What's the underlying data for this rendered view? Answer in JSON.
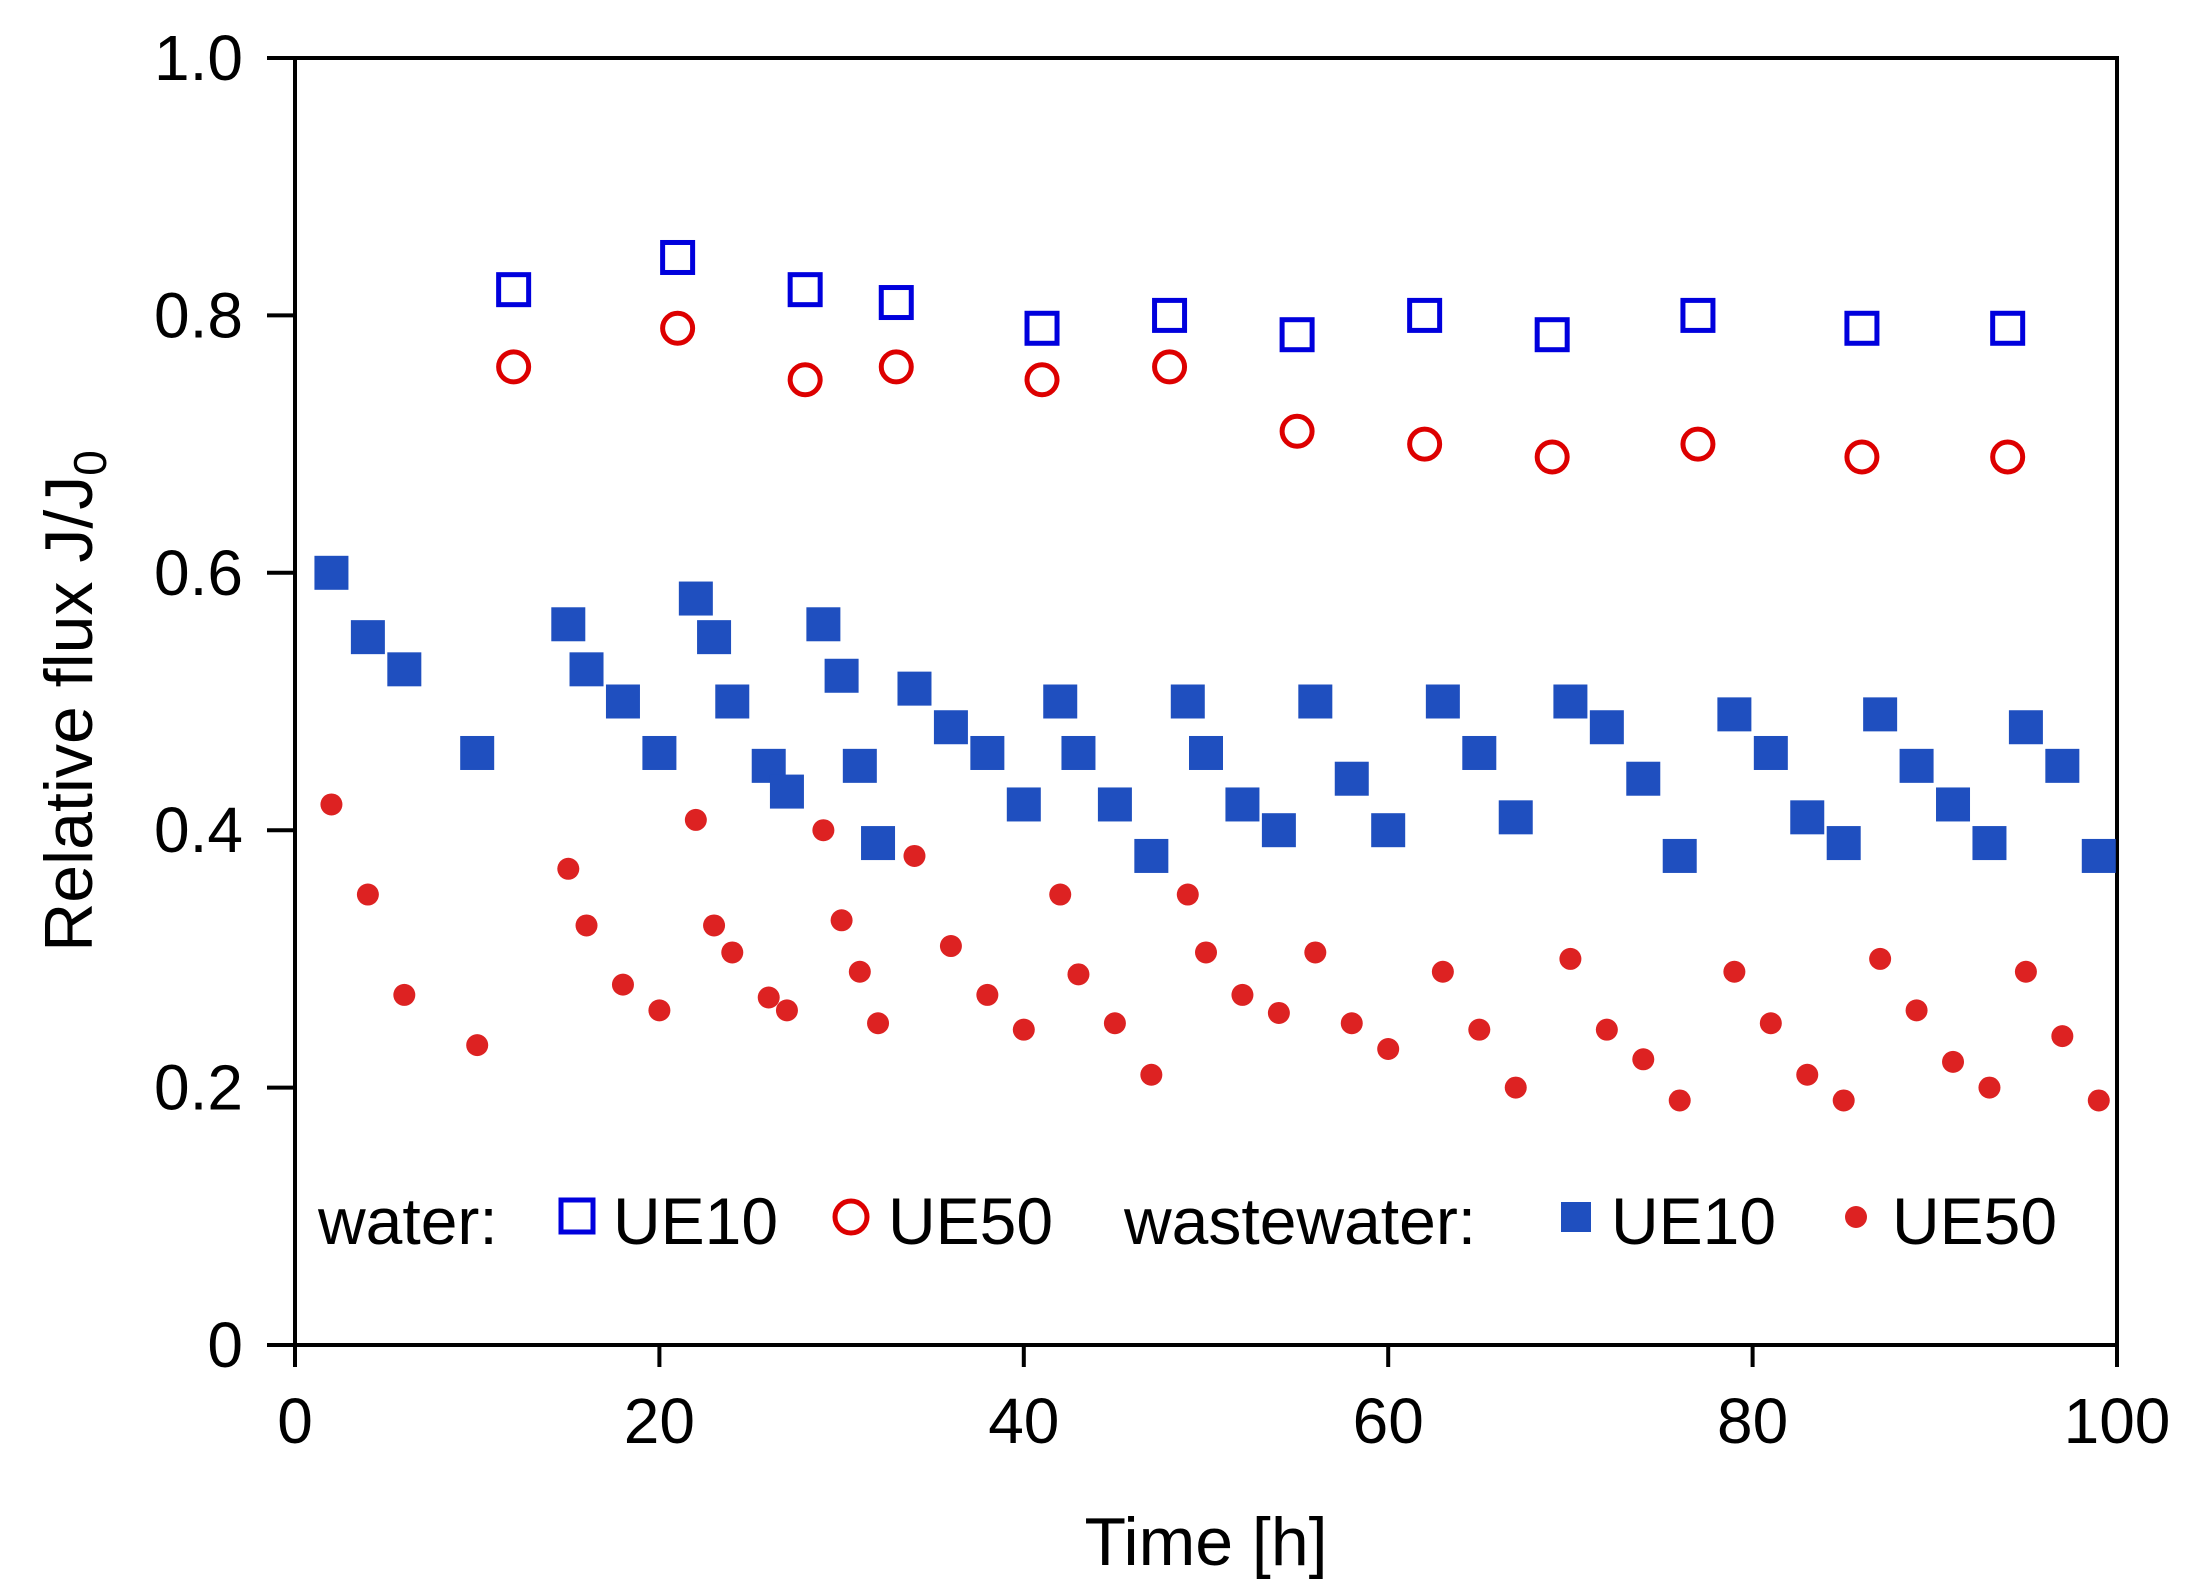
{
  "chart_data": {
    "type": "scatter",
    "title": "",
    "xlabel": "Time [h]",
    "ylabel_main": "Relative flux J/J",
    "ylabel_subscript": "0",
    "xlim": [
      0,
      100
    ],
    "ylim": [
      0,
      1.0
    ],
    "xticks": [
      0,
      20,
      40,
      60,
      80,
      100
    ],
    "xtick_labels": [
      "0",
      "20",
      "40",
      "60",
      "80",
      "100"
    ],
    "yticks": [
      0,
      0.2,
      0.4,
      0.6,
      0.8,
      1.0
    ],
    "ytick_labels": [
      "0",
      "0.2",
      "0.4",
      "0.6",
      "0.8",
      "1.0"
    ],
    "grid": false,
    "legend_position": "bottom",
    "legend": {
      "water_label": "water:",
      "wastewater_label": "wastewater:",
      "water_ue10": "UE10",
      "water_ue50": "UE50",
      "wastewater_ue10": "UE10",
      "wastewater_ue50": "UE50"
    },
    "series": [
      {
        "name": "water UE10",
        "marker": "square-open",
        "color": "#0000dd",
        "x": [
          12,
          21,
          28,
          33,
          41,
          48,
          55,
          62,
          69,
          77,
          86,
          94
        ],
        "y": [
          0.82,
          0.845,
          0.82,
          0.81,
          0.79,
          0.8,
          0.785,
          0.8,
          0.785,
          0.8,
          0.79,
          0.79
        ]
      },
      {
        "name": "water UE50",
        "marker": "circle-open",
        "color": "#dd0000",
        "x": [
          12,
          21,
          28,
          33,
          41,
          48,
          55,
          62,
          69,
          77,
          86,
          94
        ],
        "y": [
          0.76,
          0.79,
          0.75,
          0.76,
          0.75,
          0.76,
          0.71,
          0.7,
          0.69,
          0.7,
          0.69,
          0.69
        ]
      },
      {
        "name": "wastewater UE10",
        "marker": "square-filled",
        "color": "#1f4fbf",
        "x": [
          2,
          4,
          6,
          10,
          15,
          16,
          18,
          20,
          22,
          23,
          24,
          26,
          27,
          29,
          30,
          31,
          32,
          34,
          36,
          38,
          40,
          42,
          43,
          45,
          47,
          49,
          50,
          52,
          54,
          56,
          58,
          60,
          63,
          65,
          67,
          70,
          72,
          74,
          76,
          79,
          81,
          83,
          85,
          87,
          89,
          91,
          93,
          95,
          97,
          99
        ],
        "y": [
          0.6,
          0.55,
          0.525,
          0.46,
          0.56,
          0.525,
          0.5,
          0.46,
          0.58,
          0.55,
          0.5,
          0.45,
          0.43,
          0.56,
          0.52,
          0.45,
          0.39,
          0.51,
          0.48,
          0.46,
          0.42,
          0.5,
          0.46,
          0.42,
          0.38,
          0.5,
          0.46,
          0.42,
          0.4,
          0.5,
          0.44,
          0.4,
          0.5,
          0.46,
          0.41,
          0.5,
          0.48,
          0.44,
          0.38,
          0.49,
          0.46,
          0.41,
          0.39,
          0.49,
          0.45,
          0.42,
          0.39,
          0.48,
          0.45,
          0.38
        ]
      },
      {
        "name": "wastewater UE50",
        "marker": "circle-filled",
        "color": "#dd2222",
        "x": [
          2,
          4,
          6,
          10,
          15,
          16,
          18,
          20,
          22,
          23,
          24,
          26,
          27,
          29,
          30,
          31,
          32,
          34,
          36,
          38,
          40,
          42,
          43,
          45,
          47,
          49,
          50,
          52,
          54,
          56,
          58,
          60,
          63,
          65,
          67,
          70,
          72,
          74,
          76,
          79,
          81,
          83,
          85,
          87,
          89,
          91,
          93,
          95,
          97,
          99
        ],
        "y": [
          0.42,
          0.35,
          0.272,
          0.233,
          0.37,
          0.326,
          0.28,
          0.26,
          0.408,
          0.326,
          0.305,
          0.27,
          0.26,
          0.4,
          0.33,
          0.29,
          0.25,
          0.38,
          0.31,
          0.272,
          0.245,
          0.35,
          0.288,
          0.25,
          0.21,
          0.35,
          0.305,
          0.272,
          0.258,
          0.305,
          0.25,
          0.23,
          0.29,
          0.245,
          0.2,
          0.3,
          0.245,
          0.222,
          0.19,
          0.29,
          0.25,
          0.21,
          0.19,
          0.3,
          0.26,
          0.22,
          0.2,
          0.29,
          0.24,
          0.19
        ]
      }
    ]
  }
}
